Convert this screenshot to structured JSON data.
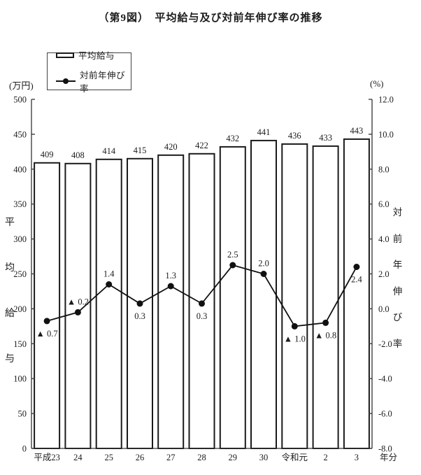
{
  "title": "（第9図）　平均給与及び対前年伸び率の推移",
  "legend": {
    "bar_label": "平均給与",
    "line_label": "対前年伸び率"
  },
  "chart_data": {
    "type": "bar",
    "subtype": "bar+line combo",
    "title": "（第9図）　平均給与及び対前年伸び率の推移",
    "categories": [
      "平成23",
      "24",
      "25",
      "26",
      "27",
      "28",
      "29",
      "30",
      "令和元",
      "2",
      "3"
    ],
    "x_suffix": "年分",
    "series": [
      {
        "name": "平均給与",
        "type": "bar",
        "axis": "left",
        "values": [
          409,
          408,
          414,
          415,
          420,
          422,
          432,
          441,
          436,
          433,
          443
        ]
      },
      {
        "name": "対前年伸び率",
        "type": "line",
        "axis": "right",
        "values": [
          -0.7,
          -0.2,
          1.4,
          0.3,
          1.3,
          0.3,
          2.5,
          2.0,
          -1.0,
          -0.8,
          2.4
        ],
        "labels": [
          "▲ 0.7",
          "▲ 0.2",
          "1.4",
          "0.3",
          "1.3",
          "0.3",
          "2.5",
          "2.0",
          "▲ 1.0",
          "▲ 0.8",
          "2.4"
        ],
        "label_positions": [
          "below",
          "above",
          "above",
          "below",
          "above",
          "below",
          "above",
          "above",
          "below",
          "below",
          "below"
        ]
      }
    ],
    "left_axis": {
      "min": 0,
      "max": 500,
      "unit": "(万円)",
      "title": "平均給与",
      "tick_labels": [
        "500",
        "450",
        "400",
        "350",
        "300",
        "250",
        "200",
        "150",
        "100",
        "50",
        "0"
      ]
    },
    "right_axis": {
      "min": -8,
      "max": 12,
      "unit": "(%)",
      "title": "対前年伸び率",
      "tick_labels": [
        "12.0",
        "10.0",
        "8.0",
        "6.0",
        "4.0",
        "2.0",
        "0.0",
        "-2.0",
        "-4.0",
        "-6.0",
        "-8.0"
      ]
    },
    "grid": false,
    "legend_position": "top-left",
    "colors": {
      "bar_fill": "#ffffff",
      "bar_stroke": "#1a1a1a",
      "line_color": "#111111",
      "axis_color": "#333333",
      "text_color": "#1c1c1c",
      "background": "#ffffff"
    }
  }
}
